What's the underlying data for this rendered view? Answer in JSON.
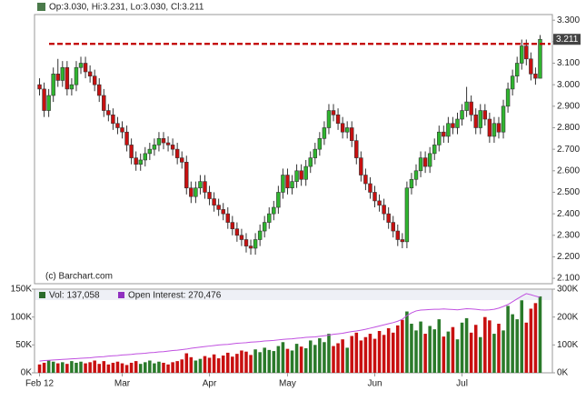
{
  "chart_data": {
    "type": "candlestick",
    "header": "Op:3.030, Hi:3.231, Lo:3.030, Cl:3.211",
    "watermark": "(c) Barchart.com",
    "volume_label": "Vol: 137,058",
    "oi_label": "Open Interest: 270,476",
    "up_color": "#2fb52f",
    "down_color": "#c81010",
    "oi_color": "#c050e0",
    "hline": 3.19,
    "hline_color": "#c00000",
    "ylim": [
      2.075,
      3.36
    ],
    "yticks": [
      {
        "value": 2.1,
        "label": "2.100"
      },
      {
        "value": 2.2,
        "label": "2.200"
      },
      {
        "value": 2.3,
        "label": "2.300"
      },
      {
        "value": 2.4,
        "label": "2.400"
      },
      {
        "value": 2.5,
        "label": "2.500"
      },
      {
        "value": 2.6,
        "label": "2.600"
      },
      {
        "value": 2.7,
        "label": "2.700"
      },
      {
        "value": 2.8,
        "label": "2.800"
      },
      {
        "value": 2.9,
        "label": "2.900"
      },
      {
        "value": 3.0,
        "label": "3.000"
      },
      {
        "value": 3.1,
        "label": "3.100"
      },
      {
        "value": 3.2,
        "label": "3.200"
      },
      {
        "value": 3.3,
        "label": "3.300"
      }
    ],
    "vol_lim": [
      0,
      150000
    ],
    "vol_ticks": [
      {
        "value": 0,
        "label": "0K"
      },
      {
        "value": 50000,
        "label": "50K"
      },
      {
        "value": 100000,
        "label": "100K"
      },
      {
        "value": 150000,
        "label": "150K"
      }
    ],
    "y2lim": [
      0,
      300000
    ],
    "y2ticks": [
      {
        "value": 0,
        "label": "0K"
      },
      {
        "value": 100000,
        "label": "100K"
      },
      {
        "value": 200000,
        "label": "200K"
      },
      {
        "value": 300000,
        "label": "300K"
      }
    ],
    "categories": [
      "Feb 12",
      null,
      null,
      null,
      null,
      null,
      null,
      null,
      null,
      null,
      null,
      null,
      null,
      null,
      null,
      null,
      null,
      null,
      "Mar",
      null,
      null,
      null,
      null,
      null,
      null,
      null,
      null,
      null,
      null,
      null,
      null,
      null,
      null,
      null,
      null,
      null,
      null,
      "Apr",
      null,
      null,
      null,
      null,
      null,
      null,
      null,
      null,
      null,
      null,
      null,
      null,
      null,
      null,
      null,
      null,
      "May",
      null,
      null,
      null,
      null,
      null,
      null,
      null,
      null,
      null,
      null,
      null,
      null,
      null,
      null,
      null,
      null,
      null,
      null,
      "Jun",
      null,
      null,
      null,
      null,
      null,
      null,
      null,
      null,
      null,
      null,
      null,
      null,
      null,
      null,
      null,
      null,
      null,
      null,
      "Jul",
      null,
      null,
      null,
      null,
      null,
      null,
      null,
      null,
      null,
      null,
      null,
      null,
      null,
      null,
      null,
      null,
      null
    ],
    "ohlc": [
      [
        3.0,
        3.03,
        2.95,
        2.98
      ],
      [
        2.98,
        3.01,
        2.85,
        2.88
      ],
      [
        2.88,
        2.98,
        2.85,
        2.95
      ],
      [
        2.95,
        3.08,
        2.92,
        3.05
      ],
      [
        3.05,
        3.12,
        2.99,
        3.02
      ],
      [
        3.02,
        3.11,
        2.99,
        3.08
      ],
      [
        3.08,
        3.11,
        2.95,
        2.98
      ],
      [
        2.98,
        3.03,
        2.95,
        3.0
      ],
      [
        3.0,
        3.11,
        2.97,
        3.08
      ],
      [
        3.08,
        3.13,
        3.05,
        3.1
      ],
      [
        3.1,
        3.13,
        3.03,
        3.06
      ],
      [
        3.06,
        3.09,
        3.01,
        3.04
      ],
      [
        3.04,
        3.07,
        2.97,
        3.0
      ],
      [
        3.0,
        3.03,
        2.92,
        2.95
      ],
      [
        2.95,
        2.98,
        2.85,
        2.88
      ],
      [
        2.88,
        2.91,
        2.83,
        2.86
      ],
      [
        2.86,
        2.89,
        2.79,
        2.82
      ],
      [
        2.82,
        2.85,
        2.77,
        2.8
      ],
      [
        2.8,
        2.83,
        2.75,
        2.78
      ],
      [
        2.78,
        2.81,
        2.69,
        2.72
      ],
      [
        2.72,
        2.75,
        2.63,
        2.66
      ],
      [
        2.66,
        2.69,
        2.6,
        2.63
      ],
      [
        2.63,
        2.68,
        2.6,
        2.65
      ],
      [
        2.65,
        2.71,
        2.62,
        2.68
      ],
      [
        2.68,
        2.73,
        2.65,
        2.7
      ],
      [
        2.7,
        2.75,
        2.67,
        2.72
      ],
      [
        2.72,
        2.78,
        2.69,
        2.75
      ],
      [
        2.75,
        2.78,
        2.7,
        2.73
      ],
      [
        2.73,
        2.76,
        2.69,
        2.72
      ],
      [
        2.72,
        2.75,
        2.67,
        2.7
      ],
      [
        2.7,
        2.73,
        2.63,
        2.66
      ],
      [
        2.66,
        2.69,
        2.61,
        2.64
      ],
      [
        2.64,
        2.67,
        2.49,
        2.52
      ],
      [
        2.52,
        2.55,
        2.45,
        2.48
      ],
      [
        2.48,
        2.55,
        2.45,
        2.52
      ],
      [
        2.52,
        2.58,
        2.49,
        2.55
      ],
      [
        2.55,
        2.58,
        2.47,
        2.5
      ],
      [
        2.5,
        2.53,
        2.44,
        2.47
      ],
      [
        2.47,
        2.5,
        2.41,
        2.44
      ],
      [
        2.44,
        2.47,
        2.39,
        2.42
      ],
      [
        2.42,
        2.45,
        2.37,
        2.4
      ],
      [
        2.4,
        2.43,
        2.33,
        2.36
      ],
      [
        2.36,
        2.39,
        2.3,
        2.33
      ],
      [
        2.33,
        2.36,
        2.27,
        2.3
      ],
      [
        2.3,
        2.33,
        2.25,
        2.28
      ],
      [
        2.28,
        2.31,
        2.22,
        2.25
      ],
      [
        2.25,
        2.28,
        2.21,
        2.24
      ],
      [
        2.24,
        2.31,
        2.21,
        2.28
      ],
      [
        2.28,
        2.35,
        2.25,
        2.32
      ],
      [
        2.32,
        2.39,
        2.29,
        2.36
      ],
      [
        2.36,
        2.43,
        2.33,
        2.4
      ],
      [
        2.4,
        2.46,
        2.37,
        2.43
      ],
      [
        2.43,
        2.53,
        2.4,
        2.5
      ],
      [
        2.5,
        2.61,
        2.47,
        2.58
      ],
      [
        2.58,
        2.61,
        2.49,
        2.52
      ],
      [
        2.52,
        2.58,
        2.49,
        2.55
      ],
      [
        2.55,
        2.63,
        2.52,
        2.6
      ],
      [
        2.6,
        2.63,
        2.53,
        2.56
      ],
      [
        2.56,
        2.65,
        2.53,
        2.62
      ],
      [
        2.62,
        2.69,
        2.59,
        2.66
      ],
      [
        2.66,
        2.73,
        2.63,
        2.7
      ],
      [
        2.7,
        2.78,
        2.67,
        2.75
      ],
      [
        2.75,
        2.83,
        2.72,
        2.8
      ],
      [
        2.8,
        2.91,
        2.77,
        2.88
      ],
      [
        2.88,
        2.91,
        2.83,
        2.86
      ],
      [
        2.86,
        2.89,
        2.79,
        2.82
      ],
      [
        2.82,
        2.85,
        2.75,
        2.78
      ],
      [
        2.78,
        2.83,
        2.75,
        2.8
      ],
      [
        2.8,
        2.83,
        2.71,
        2.74
      ],
      [
        2.74,
        2.77,
        2.63,
        2.66
      ],
      [
        2.66,
        2.69,
        2.55,
        2.58
      ],
      [
        2.58,
        2.61,
        2.51,
        2.54
      ],
      [
        2.54,
        2.57,
        2.47,
        2.5
      ],
      [
        2.5,
        2.53,
        2.43,
        2.46
      ],
      [
        2.46,
        2.49,
        2.41,
        2.44
      ],
      [
        2.44,
        2.47,
        2.37,
        2.4
      ],
      [
        2.4,
        2.43,
        2.33,
        2.36
      ],
      [
        2.36,
        2.39,
        2.29,
        2.32
      ],
      [
        2.32,
        2.35,
        2.25,
        2.28
      ],
      [
        2.28,
        2.31,
        2.24,
        2.27
      ],
      [
        2.27,
        2.55,
        2.24,
        2.52
      ],
      [
        2.52,
        2.59,
        2.49,
        2.56
      ],
      [
        2.56,
        2.63,
        2.53,
        2.6
      ],
      [
        2.6,
        2.69,
        2.57,
        2.66
      ],
      [
        2.66,
        2.69,
        2.59,
        2.62
      ],
      [
        2.62,
        2.71,
        2.59,
        2.68
      ],
      [
        2.68,
        2.75,
        2.65,
        2.72
      ],
      [
        2.72,
        2.81,
        2.69,
        2.78
      ],
      [
        2.78,
        2.81,
        2.73,
        2.76
      ],
      [
        2.76,
        2.85,
        2.73,
        2.82
      ],
      [
        2.82,
        2.85,
        2.77,
        2.8
      ],
      [
        2.8,
        2.87,
        2.77,
        2.84
      ],
      [
        2.84,
        2.91,
        2.81,
        2.88
      ],
      [
        2.88,
        2.99,
        2.85,
        2.92
      ],
      [
        2.92,
        2.95,
        2.83,
        2.86
      ],
      [
        2.86,
        2.89,
        2.77,
        2.8
      ],
      [
        2.8,
        2.91,
        2.77,
        2.88
      ],
      [
        2.88,
        2.91,
        2.81,
        2.84
      ],
      [
        2.84,
        2.87,
        2.73,
        2.76
      ],
      [
        2.76,
        2.85,
        2.73,
        2.82
      ],
      [
        2.82,
        2.85,
        2.75,
        2.78
      ],
      [
        2.78,
        2.93,
        2.75,
        2.9
      ],
      [
        2.9,
        3.01,
        2.87,
        2.98
      ],
      [
        2.98,
        3.07,
        2.95,
        3.04
      ],
      [
        3.04,
        3.13,
        3.01,
        3.1
      ],
      [
        3.1,
        3.21,
        3.07,
        3.18
      ],
      [
        3.18,
        3.21,
        3.09,
        3.12
      ],
      [
        3.12,
        3.15,
        3.02,
        3.05
      ],
      [
        3.05,
        3.08,
        3.0,
        3.03
      ],
      [
        3.03,
        3.231,
        3.03,
        3.211
      ]
    ],
    "volume": [
      15000,
      18000,
      22000,
      20000,
      17000,
      19000,
      16000,
      21000,
      18000,
      20000,
      17000,
      19000,
      22000,
      16000,
      21000,
      15000,
      18000,
      20000,
      17000,
      14000,
      18000,
      21000,
      16000,
      19000,
      22000,
      17000,
      20000,
      18000,
      15000,
      19000,
      21000,
      24000,
      35000,
      28000,
      22000,
      25000,
      30000,
      27000,
      33000,
      26000,
      31000,
      36000,
      29000,
      34000,
      40000,
      38000,
      32000,
      42000,
      37000,
      45000,
      41000,
      39000,
      48000,
      55000,
      43000,
      40000,
      52000,
      47000,
      44000,
      58000,
      50000,
      62000,
      55000,
      70000,
      48000,
      53000,
      60000,
      45000,
      66000,
      72000,
      58000,
      64000,
      70000,
      61000,
      75000,
      68000,
      80000,
      72000,
      85000,
      95000,
      110000,
      88000,
      76000,
      92000,
      70000,
      84000,
      78000,
      96000,
      65000,
      74000,
      82000,
      60000,
      90000,
      98000,
      72000,
      86000,
      64000,
      100000,
      94000,
      70000,
      88000,
      76000,
      120000,
      105000,
      96000,
      130000,
      90000,
      115000,
      125000,
      137058
    ],
    "open_interest": [
      42000,
      44000,
      45000,
      46000,
      47000,
      48000,
      49000,
      50000,
      51000,
      52000,
      53000,
      54000,
      56000,
      57000,
      58000,
      60000,
      61000,
      62000,
      64000,
      65000,
      66000,
      68000,
      69000,
      70000,
      72000,
      73000,
      75000,
      76000,
      78000,
      80000,
      81000,
      83000,
      85000,
      88000,
      90000,
      92000,
      94000,
      96000,
      98000,
      100000,
      101000,
      102000,
      104000,
      106000,
      107000,
      108000,
      110000,
      111000,
      112000,
      114000,
      115000,
      116000,
      118000,
      120000,
      121000,
      122000,
      124000,
      125000,
      127000,
      128000,
      129000,
      131000,
      133000,
      135000,
      138000,
      140000,
      142000,
      145000,
      148000,
      150000,
      153000,
      156000,
      160000,
      164000,
      168000,
      172000,
      176000,
      180000,
      185000,
      192000,
      205000,
      215000,
      222000,
      225000,
      226000,
      227000,
      228000,
      228000,
      229000,
      228000,
      227000,
      226000,
      228000,
      230000,
      229000,
      228000,
      226000,
      225000,
      226000,
      228000,
      232000,
      238000,
      245000,
      255000,
      265000,
      275000,
      284000,
      280000,
      275000,
      270476
    ]
  }
}
